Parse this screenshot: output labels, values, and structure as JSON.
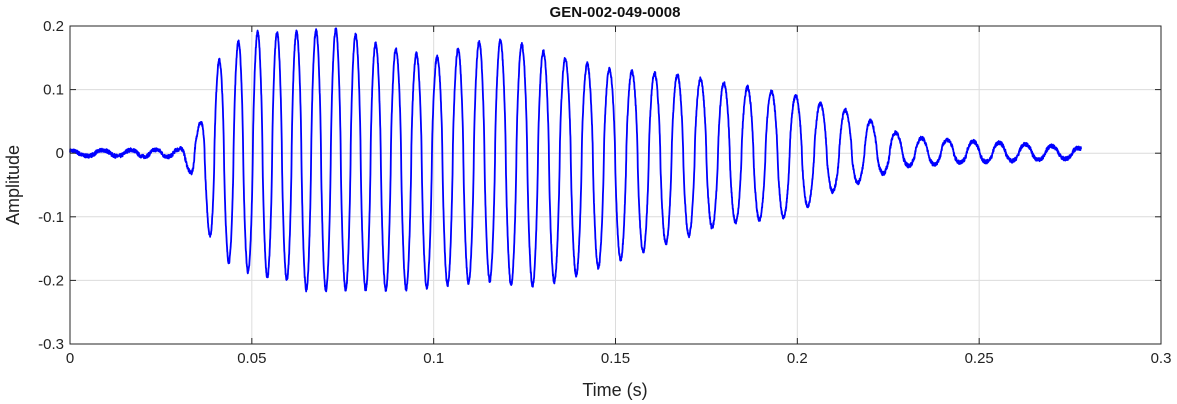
{
  "chart_data": {
    "type": "line",
    "title": "GEN-002-049-0008",
    "xlabel": "Time (s)",
    "ylabel": "Amplitude",
    "xlim": [
      0,
      0.3
    ],
    "ylim": [
      -0.3,
      0.2
    ],
    "xticks": [
      0,
      0.05,
      0.1,
      0.15,
      0.2,
      0.25,
      0.3
    ],
    "xtick_labels": [
      "0",
      "0.05",
      "0.1",
      "0.15",
      "0.2",
      "0.25",
      "0.3"
    ],
    "yticks": [
      -0.3,
      -0.2,
      -0.1,
      0,
      0.1,
      0.2
    ],
    "ytick_labels": [
      "-0.3",
      "-0.2",
      "-0.1",
      "0",
      "0.1",
      "0.2"
    ],
    "grid": true,
    "line_color": "#0000ff",
    "signal": {
      "x_start": 0,
      "x_end": 0.278,
      "noise_level": 0.003,
      "envelope_max": [
        [
          0.0,
          0.004
        ],
        [
          0.03,
          0.006
        ],
        [
          0.033,
          0.02
        ],
        [
          0.036,
          0.05
        ],
        [
          0.04,
          0.14
        ],
        [
          0.045,
          0.17
        ],
        [
          0.05,
          0.19
        ],
        [
          0.06,
          0.19
        ],
        [
          0.075,
          0.195
        ],
        [
          0.085,
          0.17
        ],
        [
          0.1,
          0.15
        ],
        [
          0.11,
          0.17
        ],
        [
          0.115,
          0.18
        ],
        [
          0.125,
          0.17
        ],
        [
          0.135,
          0.15
        ],
        [
          0.15,
          0.13
        ],
        [
          0.165,
          0.125
        ],
        [
          0.18,
          0.11
        ],
        [
          0.2,
          0.09
        ],
        [
          0.205,
          0.08
        ],
        [
          0.215,
          0.065
        ],
        [
          0.222,
          0.045
        ],
        [
          0.23,
          0.025
        ],
        [
          0.245,
          0.02
        ],
        [
          0.26,
          0.015
        ],
        [
          0.278,
          0.008
        ]
      ],
      "envelope_min": [
        [
          0.0,
          -0.004
        ],
        [
          0.03,
          -0.006
        ],
        [
          0.033,
          -0.03
        ],
        [
          0.036,
          -0.08
        ],
        [
          0.04,
          -0.16
        ],
        [
          0.05,
          -0.19
        ],
        [
          0.06,
          -0.2
        ],
        [
          0.065,
          -0.215
        ],
        [
          0.075,
          -0.215
        ],
        [
          0.09,
          -0.215
        ],
        [
          0.1,
          -0.21
        ],
        [
          0.115,
          -0.2
        ],
        [
          0.125,
          -0.21
        ],
        [
          0.135,
          -0.2
        ],
        [
          0.15,
          -0.17
        ],
        [
          0.16,
          -0.15
        ],
        [
          0.18,
          -0.11
        ],
        [
          0.2,
          -0.1
        ],
        [
          0.205,
          -0.07
        ],
        [
          0.215,
          -0.05
        ],
        [
          0.222,
          -0.035
        ],
        [
          0.23,
          -0.02
        ],
        [
          0.245,
          -0.015
        ],
        [
          0.26,
          -0.012
        ],
        [
          0.278,
          -0.008
        ]
      ],
      "pitch_hz": [
        [
          0.0,
          100
        ],
        [
          0.04,
          190
        ],
        [
          0.07,
          185
        ],
        [
          0.1,
          175
        ],
        [
          0.14,
          165
        ],
        [
          0.18,
          155
        ],
        [
          0.21,
          145
        ],
        [
          0.25,
          140
        ],
        [
          0.278,
          135
        ]
      ]
    }
  }
}
